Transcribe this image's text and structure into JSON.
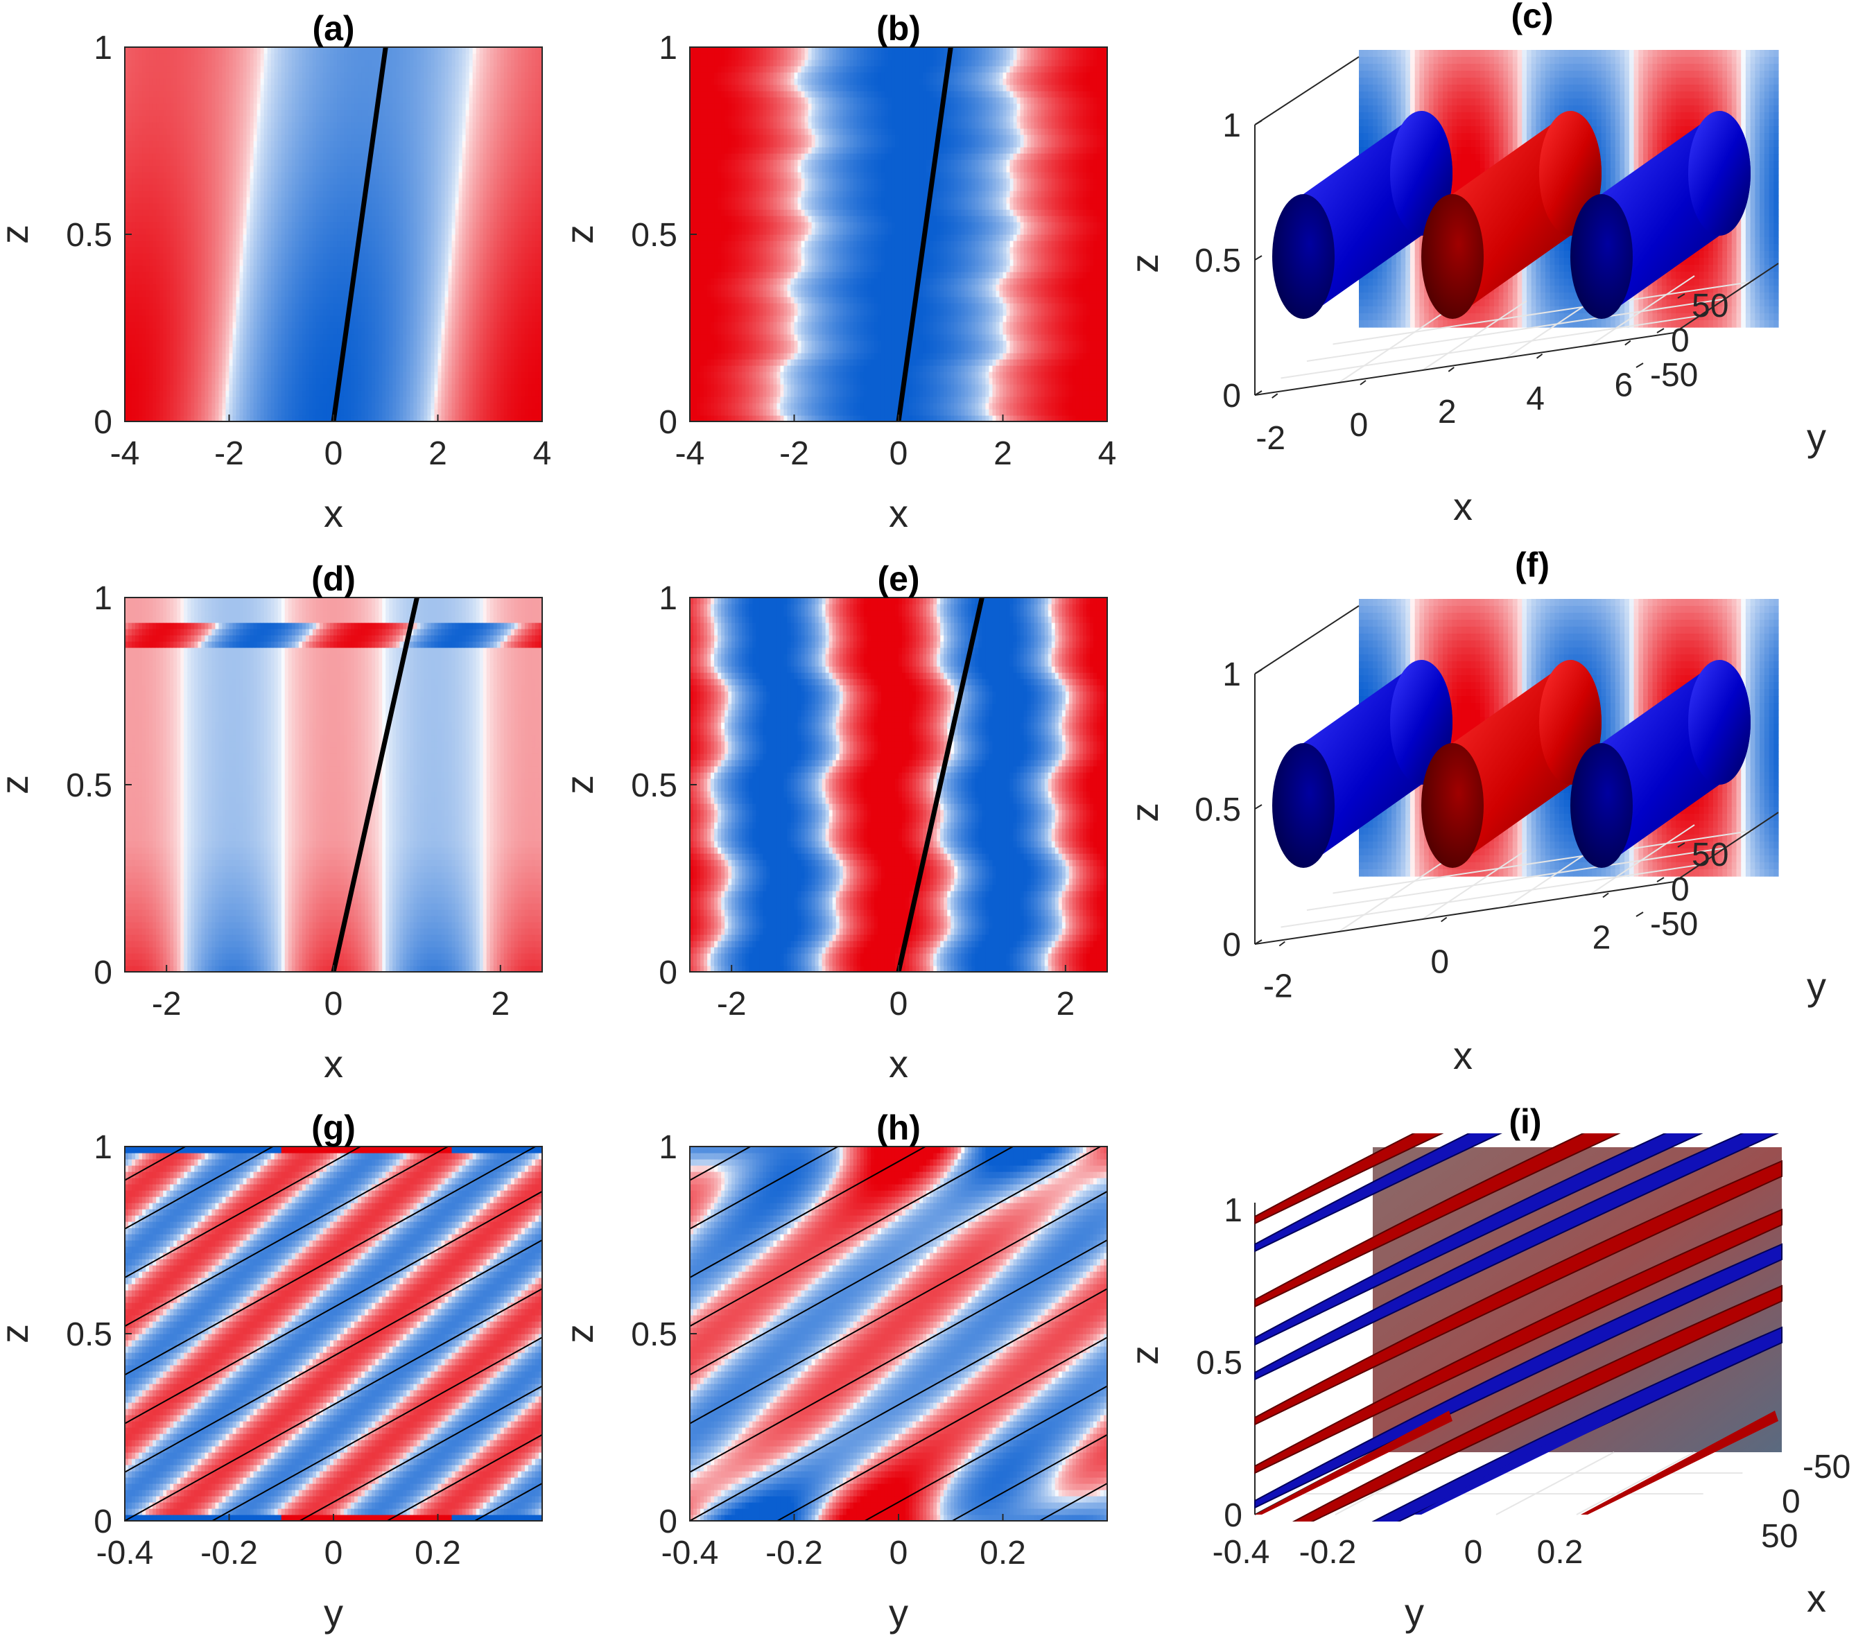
{
  "colors": {
    "red": "#e8000b",
    "blue": "#0a5fd1",
    "white": "#ffffff",
    "dark_red": "#7a0000",
    "dark_blue": "#00007a",
    "line": "#000000"
  },
  "chart_data": [
    {
      "panel": "(a)",
      "type": "heatmap",
      "title": "(a)",
      "xlabel": "x",
      "ylabel": "z",
      "xlim": [
        -4,
        4
      ],
      "ylim": [
        0,
        1
      ],
      "xticks": [
        "-4",
        "-2",
        "0",
        "2",
        "4"
      ],
      "yticks": [
        "0",
        "0.5",
        "1"
      ],
      "pattern": {
        "kind": "tilted-bands",
        "period": 8,
        "phase": -1.0,
        "tilt": 0.8
      },
      "line": {
        "x": [
          0,
          1
        ],
        "y": [
          0,
          1
        ]
      }
    },
    {
      "panel": "(b)",
      "type": "heatmap",
      "title": "(b)",
      "xlabel": "x",
      "ylabel": "z",
      "xlim": [
        -4,
        4
      ],
      "ylim": [
        0,
        1
      ],
      "xticks": [
        "-4",
        "-2",
        "0",
        "2",
        "4"
      ],
      "yticks": [
        "0",
        "0.5",
        "1"
      ],
      "pattern": {
        "kind": "noisy-bands",
        "period": 8,
        "phase": -1.0,
        "tilt": 0.5
      },
      "line": {
        "x": [
          0,
          1
        ],
        "y": [
          0,
          1
        ]
      }
    },
    {
      "panel": "(c)",
      "type": "3d-isosurface",
      "title": "(c)",
      "xlabel": "x",
      "ylabel": "y",
      "zlabel": "z",
      "xticks": [
        "-2",
        "0",
        "2",
        "4",
        "6"
      ],
      "yticks": [
        "50",
        "0",
        "-50"
      ],
      "zticks": [
        "0",
        "0.5",
        "1"
      ],
      "cylinders": [
        "blue",
        "red",
        "blue"
      ]
    },
    {
      "panel": "(d)",
      "type": "heatmap",
      "title": "(d)",
      "xlabel": "x",
      "ylabel": "z",
      "xlim": [
        -2.5,
        2.5
      ],
      "ylim": [
        0,
        1
      ],
      "xticks": [
        "-2",
        "0",
        "2"
      ],
      "yticks": [
        "0",
        "0.5",
        "1"
      ],
      "pattern": {
        "kind": "faint-bands",
        "period": 5,
        "phase": 0
      },
      "line": {
        "x": [
          0,
          1
        ],
        "y": [
          0,
          1
        ]
      }
    },
    {
      "panel": "(e)",
      "type": "heatmap",
      "title": "(e)",
      "xlabel": "x",
      "ylabel": "z",
      "xlim": [
        -2.5,
        2.5
      ],
      "ylim": [
        0,
        1
      ],
      "xticks": [
        "-2",
        "0",
        "2"
      ],
      "yticks": [
        "0",
        "0.5",
        "1"
      ],
      "pattern": {
        "kind": "zigzag-bands",
        "period": 2.7,
        "phase": 0
      },
      "line": {
        "x": [
          0,
          1
        ],
        "y": [
          0,
          1
        ]
      }
    },
    {
      "panel": "(f)",
      "type": "3d-isosurface",
      "title": "(f)",
      "xlabel": "x",
      "ylabel": "y",
      "zlabel": "z",
      "xticks": [
        "-2",
        "0",
        "2"
      ],
      "yticks": [
        "50",
        "0",
        "-50"
      ],
      "zticks": [
        "0",
        "0.5",
        "1"
      ],
      "cylinders": [
        "blue",
        "red",
        "blue"
      ]
    },
    {
      "panel": "(g)",
      "type": "heatmap",
      "title": "(g)",
      "xlabel": "y",
      "ylabel": "z",
      "xlim": [
        -0.4,
        0.4
      ],
      "ylim": [
        0,
        1
      ],
      "xticks": [
        "-0.4",
        "-0.2",
        "0",
        "0.2"
      ],
      "yticks": [
        "0",
        "0.5",
        "1"
      ],
      "pattern": {
        "kind": "diagonal-stripes",
        "period": 0.32,
        "slope": 0.5
      },
      "lines": {
        "slope": 0.5,
        "spacing": 0.1,
        "count": 9
      }
    },
    {
      "panel": "(h)",
      "type": "heatmap",
      "title": "(h)",
      "xlabel": "y",
      "ylabel": "z",
      "xlim": [
        -0.4,
        0.4
      ],
      "ylim": [
        0,
        1
      ],
      "xticks": [
        "-0.4",
        "-0.2",
        "0",
        "0.2"
      ],
      "yticks": [
        "0",
        "0.5",
        "1"
      ],
      "pattern": {
        "kind": "diagonal-stripes-soft",
        "period": 0.4,
        "slope": 0.5
      },
      "lines": {
        "slope": 0.5,
        "spacing": 0.1,
        "count": 9
      }
    },
    {
      "panel": "(i)",
      "type": "3d-isosurface",
      "title": "(i)",
      "xlabel": "y",
      "ylabel": "x",
      "zlabel": "z",
      "xticks": [
        "-0.4",
        "-0.2",
        "0",
        "0.2"
      ],
      "yticks": [
        "-50",
        "0",
        "50"
      ],
      "zticks": [
        "0",
        "0.5",
        "1"
      ]
    }
  ]
}
